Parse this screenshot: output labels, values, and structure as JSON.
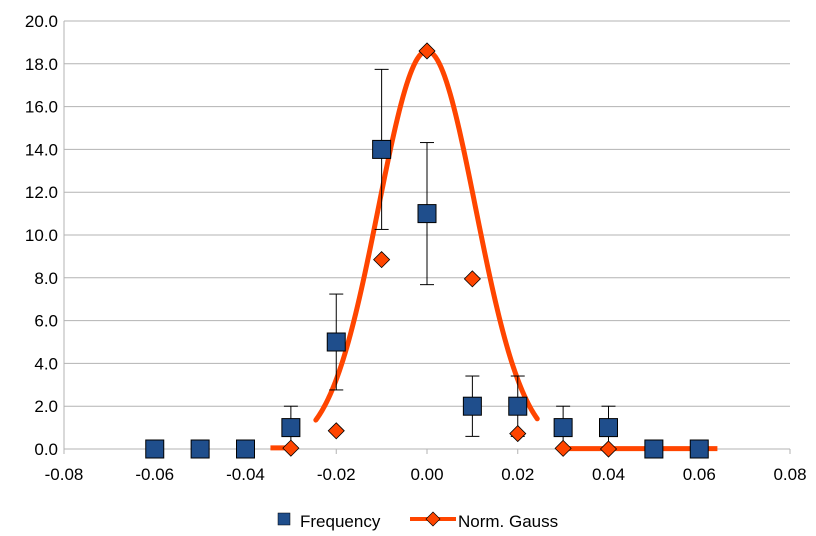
{
  "chart_data": {
    "type": "scatter",
    "title": "",
    "xlabel": "",
    "ylabel": "",
    "xlim": [
      -0.08,
      0.08
    ],
    "ylim": [
      0,
      20
    ],
    "x_ticks": [
      -0.08,
      -0.06,
      -0.04,
      -0.02,
      0.0,
      0.02,
      0.04,
      0.06,
      0.08
    ],
    "x_tick_labels": [
      "-0.08",
      "-0.06",
      "-0.04",
      "-0.02",
      "0.00",
      "0.02",
      "0.04",
      "0.06",
      "0.08"
    ],
    "y_ticks": [
      0,
      2,
      4,
      6,
      8,
      10,
      12,
      14,
      16,
      18,
      20
    ],
    "y_tick_labels": [
      "0.0",
      "2.0",
      "4.0",
      "6.0",
      "8.0",
      "10.0",
      "12.0",
      "14.0",
      "16.0",
      "18.0",
      "20.0"
    ],
    "grid": "horizontal",
    "legend": "bottom",
    "series": [
      {
        "name": "Frequency",
        "marker": "square",
        "color": "#1f4e8c",
        "x": [
          -0.06,
          -0.05,
          -0.04,
          -0.03,
          -0.02,
          -0.01,
          0.0,
          0.01,
          0.02,
          0.03,
          0.04,
          0.05,
          0.06
        ],
        "y": [
          0,
          0,
          0,
          1,
          5,
          14,
          11,
          2,
          2,
          1,
          1,
          0,
          0
        ],
        "error": [
          0,
          0,
          0,
          1.0,
          2.24,
          3.74,
          3.32,
          1.41,
          1.41,
          1.0,
          1.0,
          0,
          0
        ]
      },
      {
        "name": "Norm. Gauss",
        "marker": "diamond",
        "color": "#ff4500",
        "line": "smooth",
        "mean": 0.0,
        "sigma": 0.0107,
        "peak": 18.6,
        "x": [
          -0.03,
          -0.02,
          -0.01,
          0.0,
          0.01,
          0.02,
          0.03,
          0.04
        ],
        "y": [
          0.04,
          0.85,
          8.85,
          18.6,
          7.95,
          0.72,
          0.03,
          0.0
        ]
      }
    ]
  }
}
